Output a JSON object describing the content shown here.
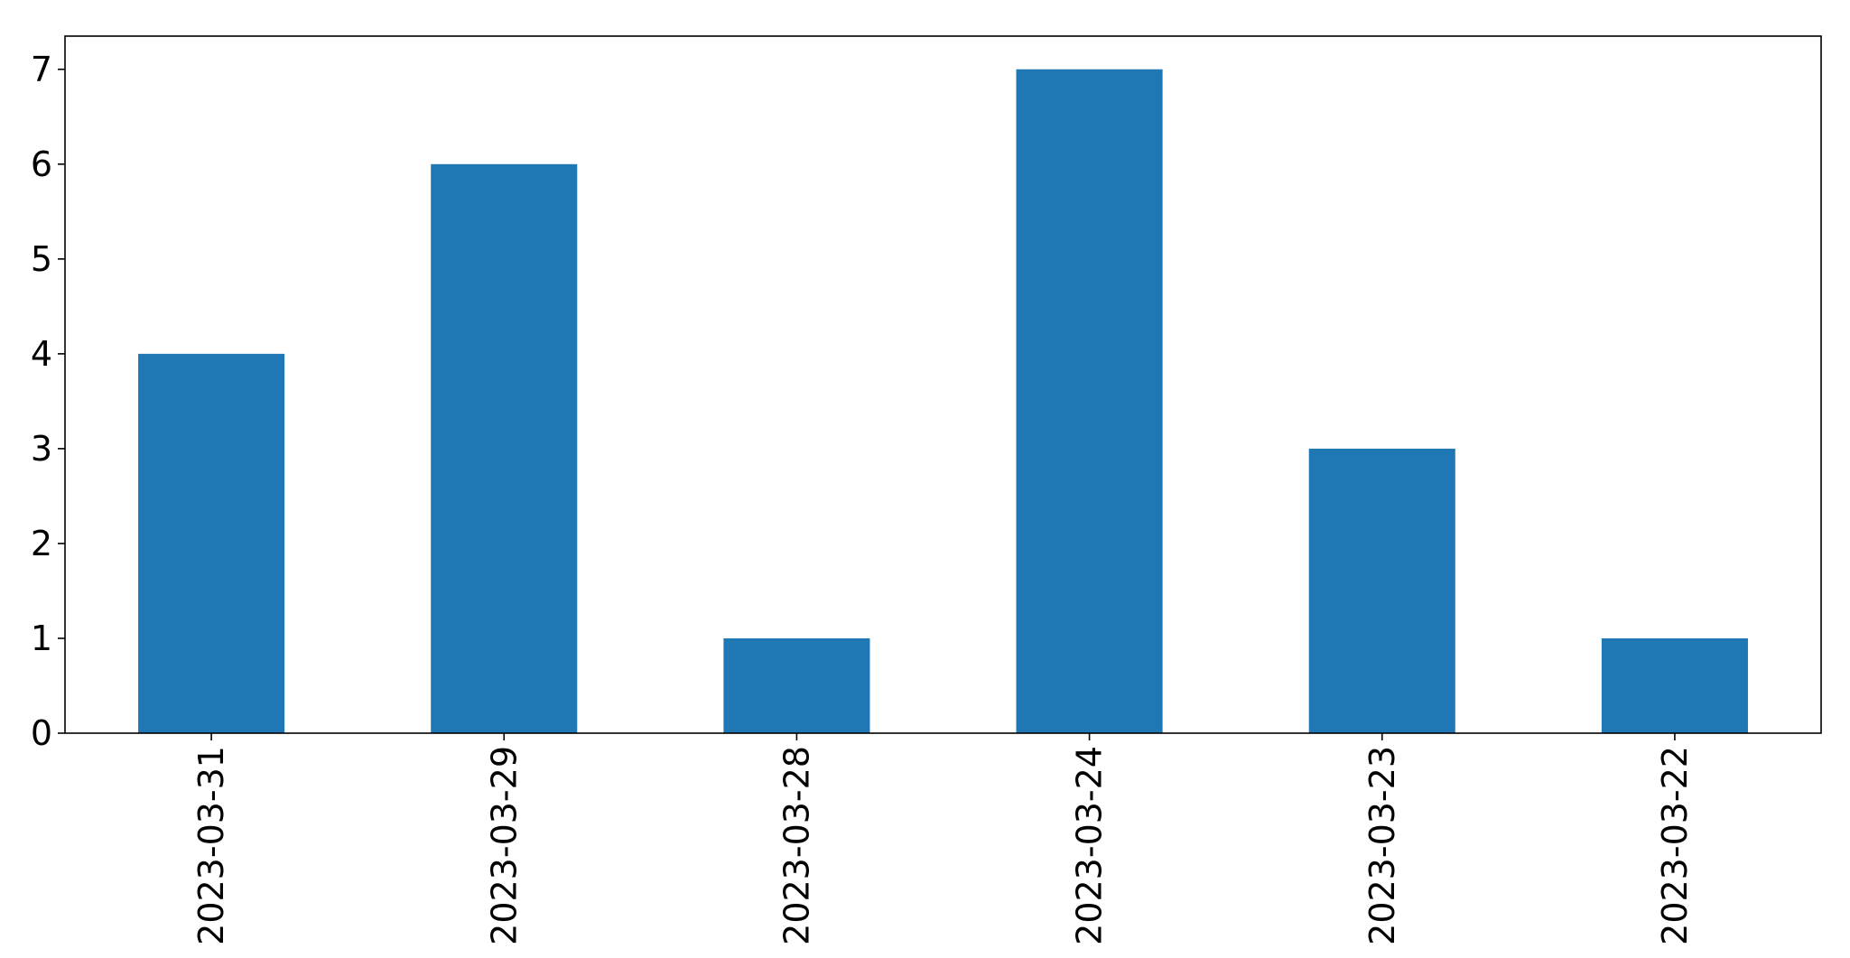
{
  "chart_data": {
    "type": "bar",
    "categories": [
      "2023-03-31",
      "2023-03-29",
      "2023-03-28",
      "2023-03-24",
      "2023-03-23",
      "2023-03-22"
    ],
    "values": [
      4,
      6,
      1,
      7,
      3,
      1
    ],
    "title": "",
    "xlabel": "",
    "ylabel": "",
    "ylim": [
      0,
      7.35
    ],
    "yticks": [
      "0",
      "1",
      "2",
      "3",
      "4",
      "5",
      "6",
      "7"
    ],
    "grid": false,
    "bar_color": "#1f77b4"
  }
}
